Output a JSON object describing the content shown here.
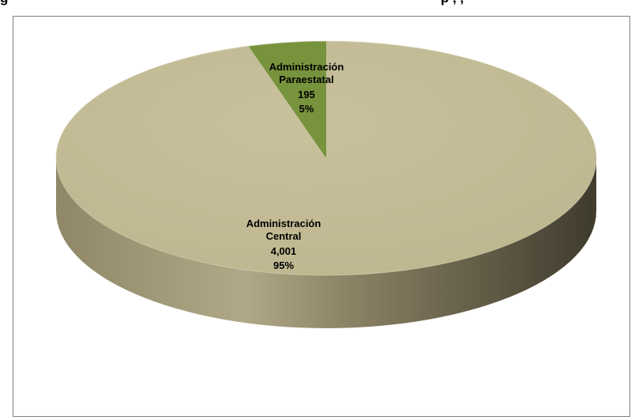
{
  "top_text": {
    "left": "g",
    "right": "p          ,        ,"
  },
  "chart_data": {
    "type": "pie",
    "title": "",
    "slices": [
      {
        "label_lines": [
          "Administración",
          "Central"
        ],
        "value": 4001,
        "value_label": "4,001",
        "percent_label": "95%"
      },
      {
        "label_lines": [
          "Administración",
          "Paraestatal"
        ],
        "value": 195,
        "value_label": "195",
        "percent_label": "5%"
      }
    ],
    "colors": {
      "central_top": "#c4bd97",
      "paraestatal_top": "#77933c",
      "side_light": "#a79f7c",
      "side_dark": "#4a4535"
    },
    "legend": "none"
  }
}
